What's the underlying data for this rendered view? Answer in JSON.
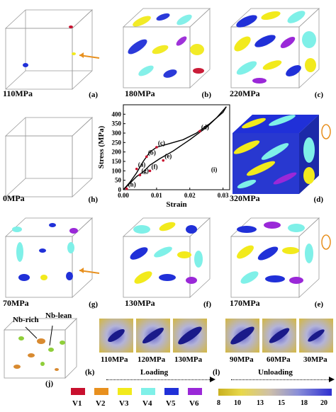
{
  "panels": [
    {
      "id": "a",
      "stress": "110MPa",
      "letter": "(a)"
    },
    {
      "id": "b",
      "stress": "180MPa",
      "letter": "(b)"
    },
    {
      "id": "c",
      "stress": "220MPa",
      "letter": "(c)"
    },
    {
      "id": "h",
      "stress": "0MPa",
      "letter": "(h)"
    },
    {
      "id": "d",
      "stress": "320MPa",
      "letter": "(d)"
    },
    {
      "id": "g",
      "stress": "70MPa",
      "letter": "(g)"
    },
    {
      "id": "f",
      "stress": "130MPa",
      "letter": "(f)"
    },
    {
      "id": "e",
      "stress": "170MPa",
      "letter": "(e)"
    }
  ],
  "chart_data": {
    "type": "line",
    "xlabel": "Strain",
    "ylabel": "Stress (MPa)",
    "xlim": [
      0,
      0.032
    ],
    "ylim": [
      0,
      450
    ],
    "xticks": [
      "0.00",
      "0.01",
      "0.02",
      "0.03"
    ],
    "yticks": [
      "0",
      "50",
      "100",
      "150",
      "200",
      "250",
      "300",
      "350",
      "400"
    ],
    "series": [
      {
        "values": [
          [
            0,
            0
          ],
          [
            0.002,
            40
          ],
          [
            0.004,
            90
          ],
          [
            0.006,
            150
          ],
          [
            0.008,
            200
          ],
          [
            0.01,
            225
          ],
          [
            0.014,
            245
          ],
          [
            0.018,
            265
          ],
          [
            0.022,
            300
          ],
          [
            0.026,
            350
          ],
          [
            0.03,
            410
          ],
          [
            0.031,
            440
          ]
        ]
      },
      {
        "values": [
          [
            0.031,
            440
          ],
          [
            0.028,
            380
          ],
          [
            0.025,
            330
          ],
          [
            0.02,
            265
          ],
          [
            0.015,
            205
          ],
          [
            0.011,
            165
          ],
          [
            0.008,
            130
          ],
          [
            0.006,
            95
          ],
          [
            0.004,
            70
          ],
          [
            0.002,
            35
          ],
          [
            0,
            0
          ]
        ]
      }
    ],
    "point_labels": [
      {
        "text": "(a)",
        "x": 0.004,
        "y": 110
      },
      {
        "text": "(b)",
        "x": 0.007,
        "y": 175
      },
      {
        "text": "(c)",
        "x": 0.01,
        "y": 225
      },
      {
        "text": "(d)",
        "x": 0.023,
        "y": 310
      },
      {
        "text": "(e)",
        "x": 0.012,
        "y": 155
      },
      {
        "text": "(f)",
        "x": 0.008,
        "y": 100
      },
      {
        "text": "(g)",
        "x": 0.005,
        "y": 78
      },
      {
        "text": "(h)",
        "x": 0.001,
        "y": 5
      },
      {
        "text": "(i)",
        "x": 0.026,
        "y": 85
      }
    ]
  },
  "bottom": {
    "j_letter": "(j)",
    "nb_rich": "Nb-rich",
    "nb_lean": "Nb-lean",
    "k_letter": "(k)",
    "l_letter": "(l)",
    "loading_labels": [
      "110MPa",
      "120MPa",
      "130MPa"
    ],
    "loading": "Loading",
    "unloading_labels": [
      "90MPa",
      "60MPa",
      "30MPa"
    ],
    "unloading": "Unloading"
  },
  "legend": {
    "variants": [
      {
        "label": "V1",
        "color": "#c8102e"
      },
      {
        "label": "V2",
        "color": "#e8901e"
      },
      {
        "label": "V3",
        "color": "#f2ea1c"
      },
      {
        "label": "V4",
        "color": "#7ff0e8"
      },
      {
        "label": "V5",
        "color": "#2030d8"
      },
      {
        "label": "V6",
        "color": "#9a28d8"
      }
    ],
    "colorbar_ticks": [
      "8",
      "10",
      "13",
      "15",
      "18",
      "20"
    ]
  }
}
